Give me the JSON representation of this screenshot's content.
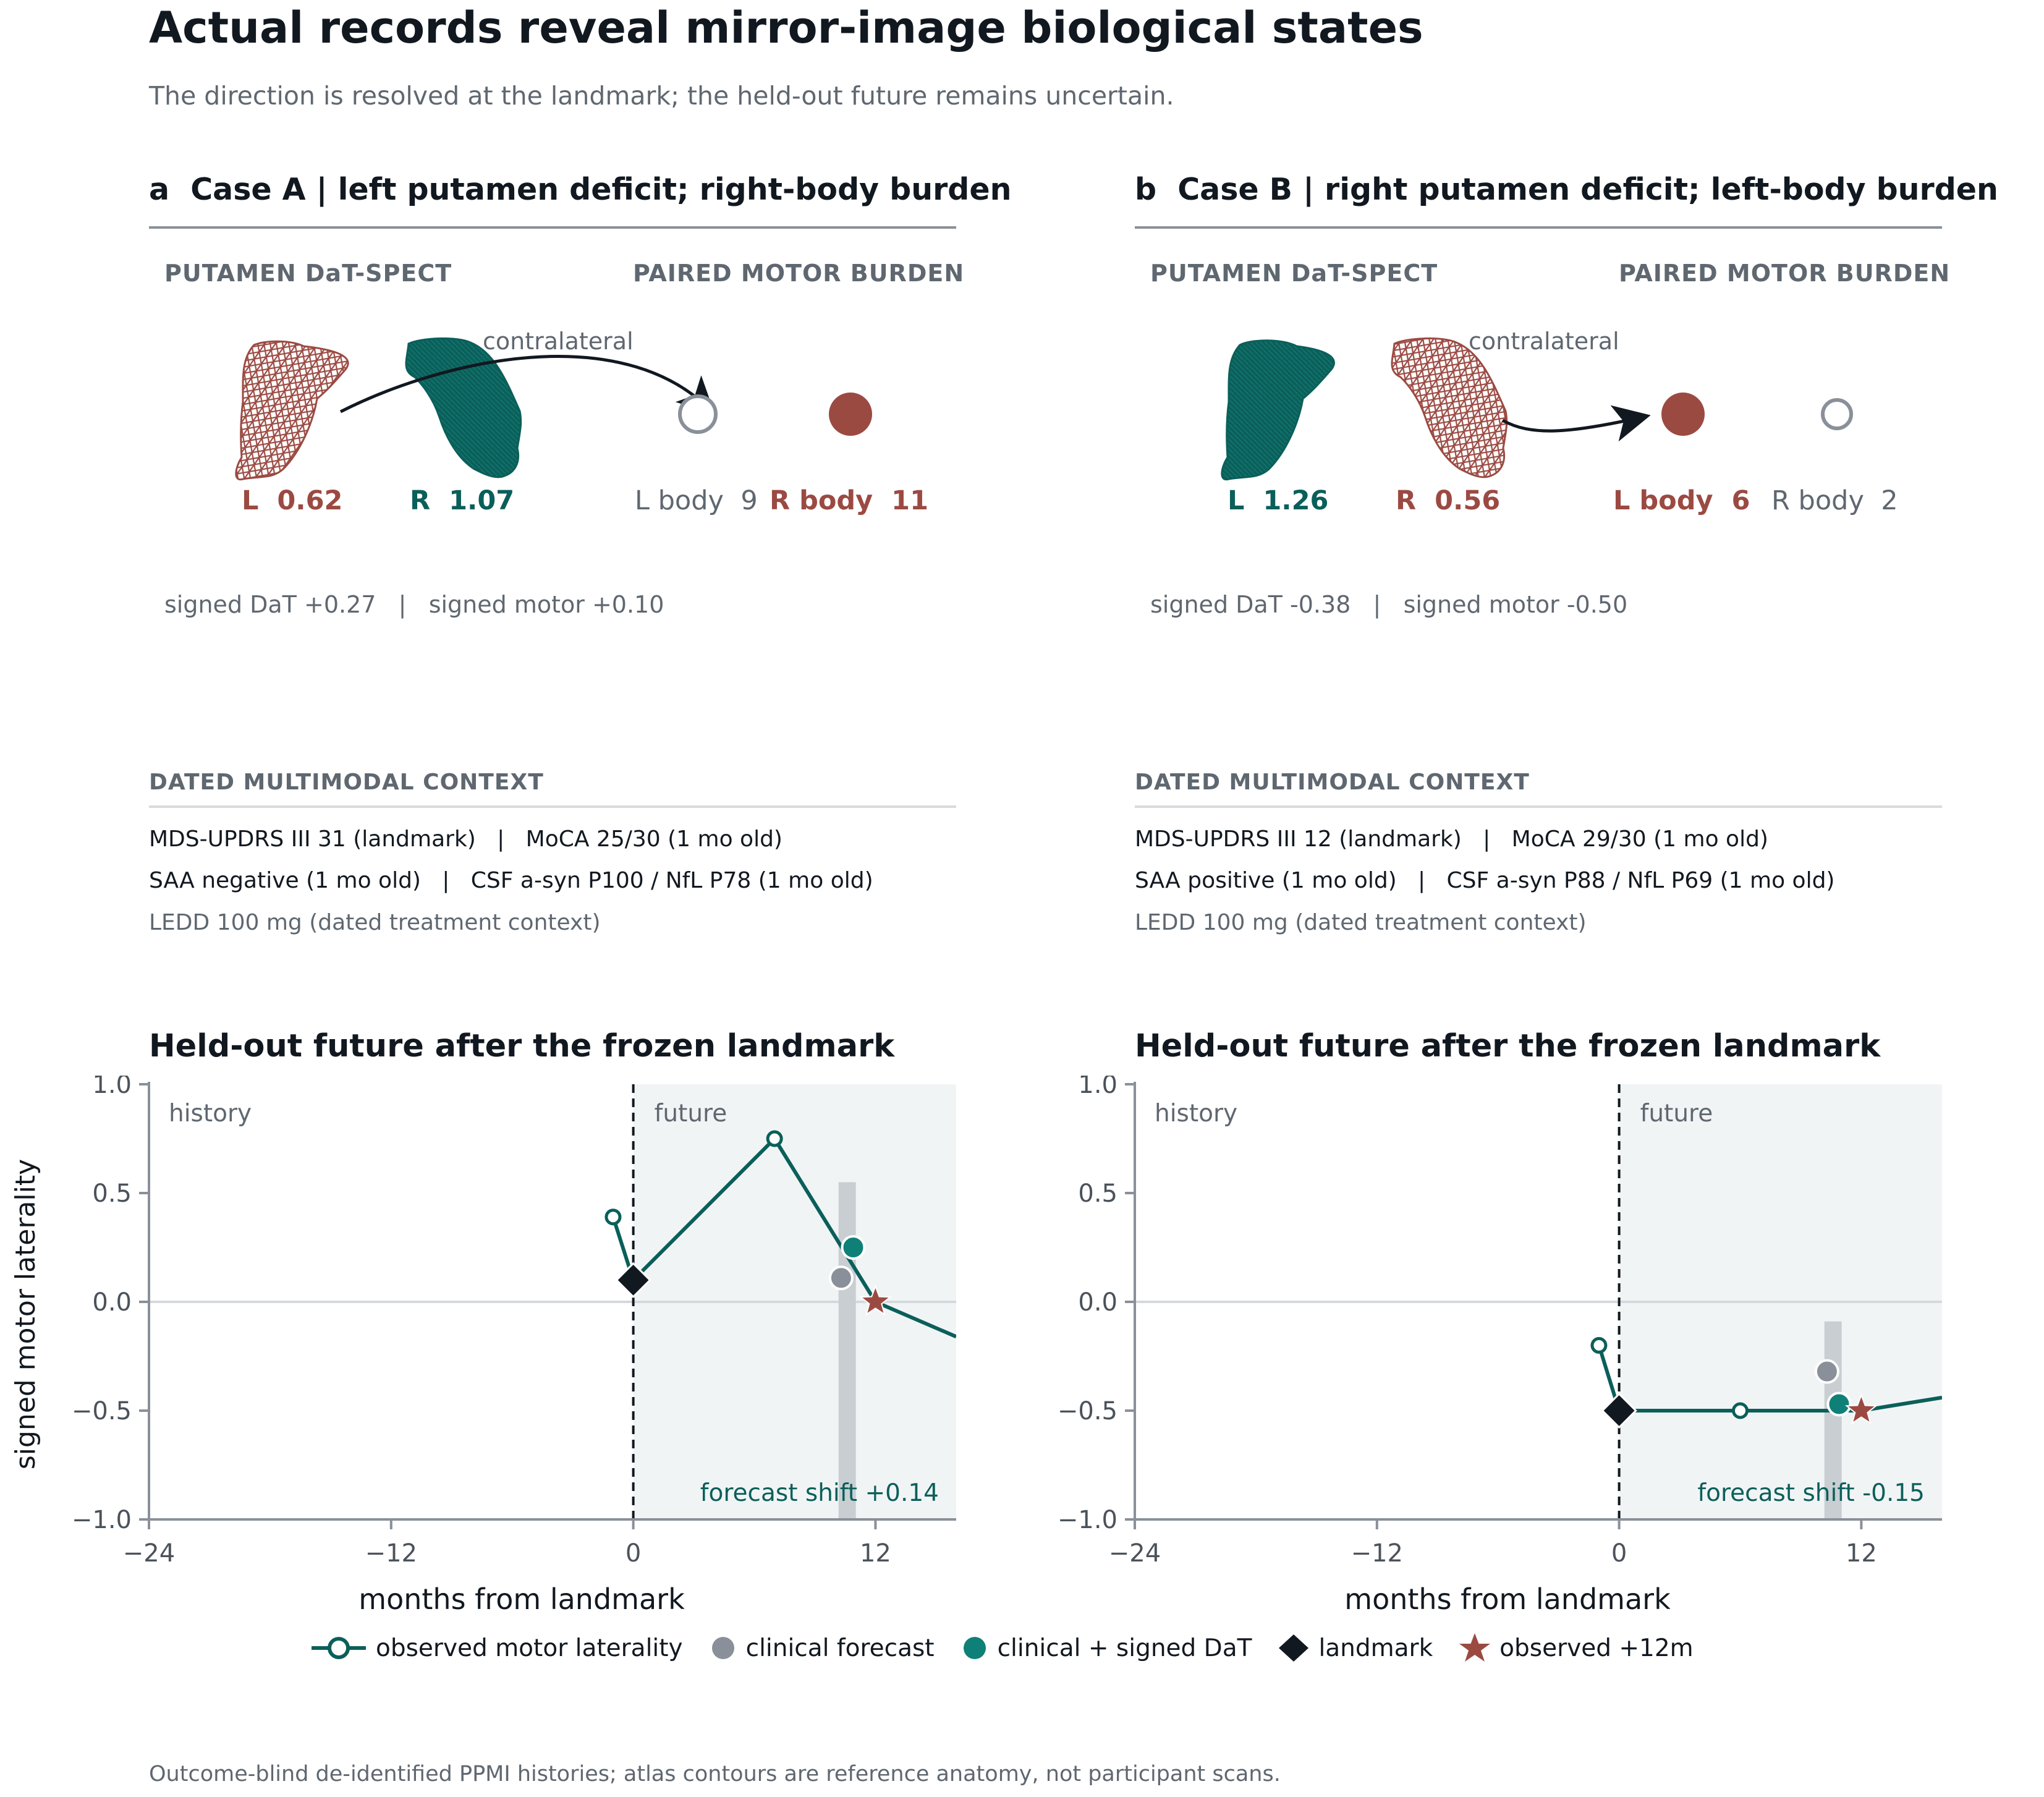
{
  "title": "Actual records reveal mirror-image biological states",
  "subtitle": "The direction is resolved at the landmark; the held-out future remains uncertain.",
  "footer": "Outcome-blind de-identified PPMI histories; atlas contours are reference anatomy, not participant scans.",
  "colors": {
    "red": "#9b4a42",
    "teal": "#0b5f5a",
    "teal_bright": "#0f8078",
    "gray": "#8a9099",
    "dark": "#111820",
    "future_bg": "#f1f4f5"
  },
  "panels": [
    {
      "letter": "a",
      "title": "Case A | left putamen deficit; right-body burden",
      "dat_header": "PUTAMEN DaT-SPECT",
      "motor_header": "PAIRED MOTOR BURDEN",
      "arrow_label": "contralateral",
      "left_putamen": {
        "label": "L",
        "value": "0.62",
        "deficit": true
      },
      "right_putamen": {
        "label": "R",
        "value": "1.07",
        "deficit": false
      },
      "left_body": {
        "label": "L body",
        "value": "9",
        "burden": false
      },
      "right_body": {
        "label": "R body",
        "value": "11",
        "burden": true
      },
      "signed_summary": "signed DaT +0.27   |   signed motor +0.10",
      "context_header": "DATED MULTIMODAL CONTEXT",
      "context_line1": "MDS-UPDRS III 31 (landmark)   |   MoCA 25/30 (1 mo old)",
      "context_line2": "SAA negative (1 mo old)   |   CSF a-syn P100 / NfL P78 (1 mo old)",
      "context_line3": "LEDD 100 mg (dated treatment context)",
      "chart_title": "Held-out future after the frozen landmark",
      "history_label": "history",
      "future_label": "future",
      "forecast_label": "forecast shift +0.14"
    },
    {
      "letter": "b",
      "title": "Case B | right putamen deficit; left-body burden",
      "dat_header": "PUTAMEN DaT-SPECT",
      "motor_header": "PAIRED MOTOR BURDEN",
      "arrow_label": "contralateral",
      "left_putamen": {
        "label": "L",
        "value": "1.26",
        "deficit": false
      },
      "right_putamen": {
        "label": "R",
        "value": "0.56",
        "deficit": true
      },
      "left_body": {
        "label": "L body",
        "value": "6",
        "burden": true
      },
      "right_body": {
        "label": "R body",
        "value": "2",
        "burden": false
      },
      "signed_summary": "signed DaT -0.38   |   signed motor -0.50",
      "context_header": "DATED MULTIMODAL CONTEXT",
      "context_line1": "MDS-UPDRS III 12 (landmark)   |   MoCA 29/30 (1 mo old)",
      "context_line2": "SAA positive (1 mo old)   |   CSF a-syn P88 / NfL P69 (1 mo old)",
      "context_line3": "LEDD 100 mg (dated treatment context)",
      "chart_title": "Held-out future after the frozen landmark",
      "history_label": "history",
      "future_label": "future",
      "forecast_label": "forecast shift -0.15"
    }
  ],
  "legend": [
    {
      "key": "observed",
      "label": "observed motor laterality"
    },
    {
      "key": "clinical",
      "label": "clinical forecast"
    },
    {
      "key": "clinical_dat",
      "label": "clinical + signed DaT"
    },
    {
      "key": "landmark",
      "label": "landmark"
    },
    {
      "key": "observed12",
      "label": "observed +12m"
    }
  ],
  "chart_data": [
    {
      "type": "line",
      "title": "Held-out future after the frozen landmark",
      "xlabel": "months from landmark",
      "ylabel": "signed motor laterality",
      "xlim": [
        -24,
        16
      ],
      "ylim": [
        -1.0,
        1.0
      ],
      "xticks": [
        "−24",
        "−12",
        "0",
        "12"
      ],
      "xtick_values": [
        -24,
        -12,
        0,
        12
      ],
      "yticks": [
        "1.0",
        "0.5",
        "0.0",
        "−0.5",
        "−1.0"
      ],
      "ytick_values": [
        1.0,
        0.5,
        0.0,
        -0.5,
        -1.0
      ],
      "observed": {
        "x": [
          -1,
          0,
          7,
          12,
          16
        ],
        "y": [
          0.39,
          0.1,
          0.75,
          0.0,
          -0.16
        ],
        "markers": [
          true,
          false,
          true,
          false,
          false
        ]
      },
      "landmark": {
        "x": 0,
        "y": 0.1
      },
      "clinical_forecast": {
        "x": 10.3,
        "y": 0.11
      },
      "clinical_dat_forecast": {
        "x": 10.9,
        "y": 0.25
      },
      "forecast_band": {
        "x": 10.6,
        "ymin": -1.0,
        "ymax": 0.55
      },
      "observed_12m": {
        "x": 12,
        "y": 0.0
      }
    },
    {
      "type": "line",
      "title": "Held-out future after the frozen landmark",
      "xlabel": "months from landmark",
      "ylabel": "",
      "xlim": [
        -24,
        16
      ],
      "ylim": [
        -1.0,
        1.0
      ],
      "xticks": [
        "−24",
        "−12",
        "0",
        "12"
      ],
      "xtick_values": [
        -24,
        -12,
        0,
        12
      ],
      "yticks": [
        "1.0",
        "0.5",
        "0.0",
        "−0.5",
        "−1.0"
      ],
      "ytick_values": [
        1.0,
        0.5,
        0.0,
        -0.5,
        -1.0
      ],
      "observed": {
        "x": [
          -1,
          0,
          6,
          12,
          16
        ],
        "y": [
          -0.2,
          -0.5,
          -0.5,
          -0.5,
          -0.44
        ],
        "markers": [
          true,
          false,
          true,
          false,
          false
        ]
      },
      "landmark": {
        "x": 0,
        "y": -0.5
      },
      "clinical_forecast": {
        "x": 10.3,
        "y": -0.32
      },
      "clinical_dat_forecast": {
        "x": 10.9,
        "y": -0.47
      },
      "forecast_band": {
        "x": 10.6,
        "ymin": -1.0,
        "ymax": -0.09
      },
      "observed_12m": {
        "x": 12,
        "y": -0.5
      }
    }
  ]
}
